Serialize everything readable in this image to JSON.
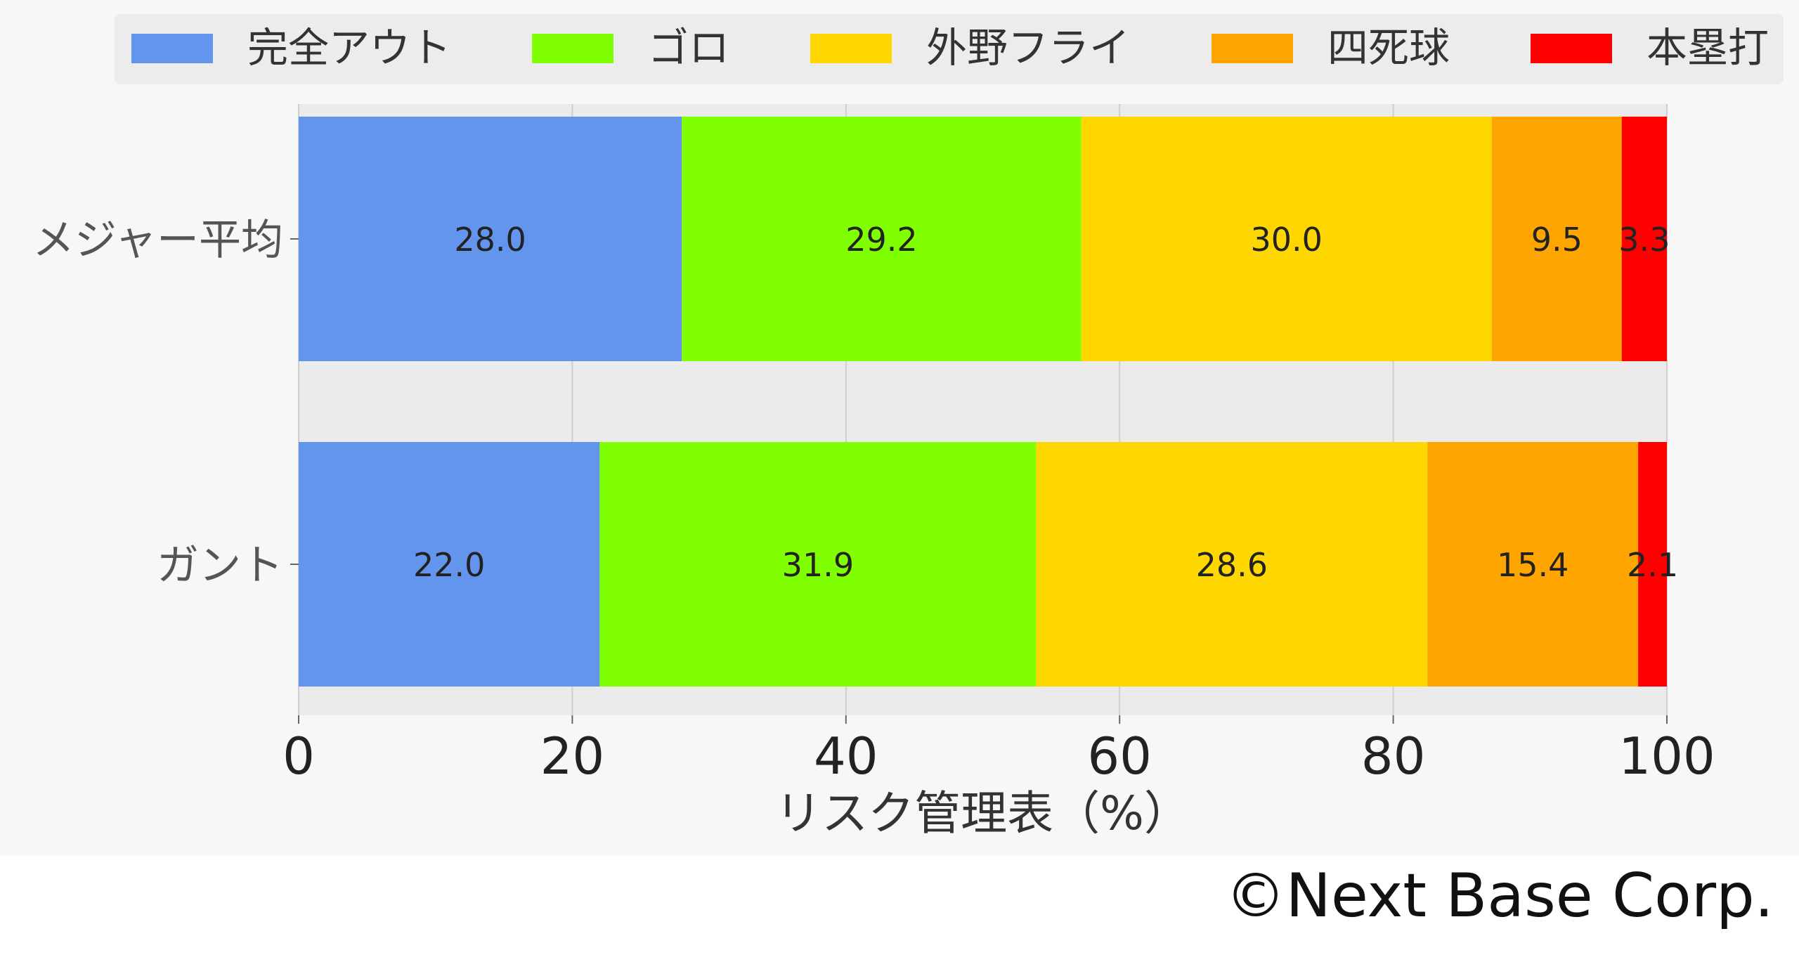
{
  "chart_data": {
    "type": "bar",
    "orientation": "horizontal",
    "stacked": true,
    "categories": [
      "メジャー平均",
      "ガント"
    ],
    "series": [
      {
        "name": "完全アウト",
        "color": "#6495ed",
        "values": [
          28.0,
          22.0
        ]
      },
      {
        "name": "ゴロ",
        "color": "#7fff00",
        "values": [
          29.2,
          31.9
        ]
      },
      {
        "name": "外野フライ",
        "color": "#ffd700",
        "values": [
          30.0,
          28.6
        ]
      },
      {
        "name": "四死球",
        "color": "#ffa500",
        "values": [
          9.5,
          15.4
        ]
      },
      {
        "name": "本塁打",
        "color": "#ff0000",
        "values": [
          3.3,
          2.1
        ]
      }
    ],
    "xlabel": "リスク管理表（%）",
    "ylabel": "",
    "xlim": [
      0,
      100
    ],
    "xticks": [
      "0",
      "20",
      "40",
      "60",
      "80",
      "100"
    ],
    "grid": true,
    "legend": "top"
  },
  "footer": {
    "copyright": "©Next Base Corp."
  }
}
